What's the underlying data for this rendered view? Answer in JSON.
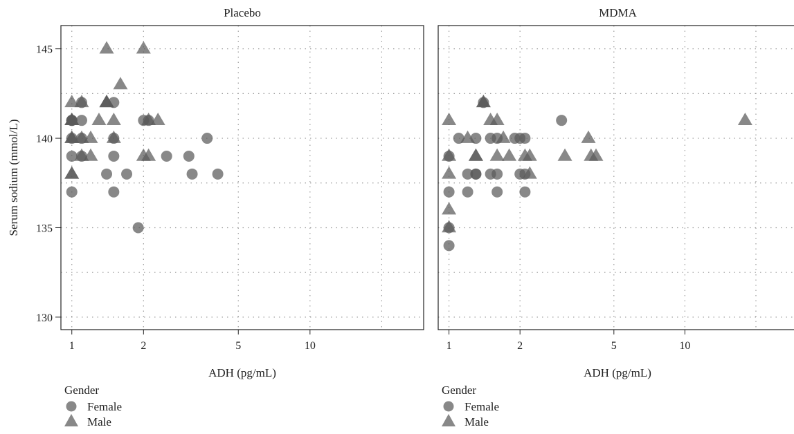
{
  "chart_data": {
    "type": "scatter",
    "ylabel": "Serum sodium (mmol/L)",
    "xlabel": "ADH (pg/mL)",
    "x_scale": "log",
    "xlim": [
      0.9,
      30
    ],
    "ylim": [
      129.3,
      146.3
    ],
    "x_ticks": [
      1,
      2,
      5,
      10
    ],
    "y_ticks": [
      130,
      135,
      140,
      145
    ],
    "grid": true,
    "legend": {
      "title": "Gender",
      "entries": [
        {
          "label": "Female",
          "marker": "circle"
        },
        {
          "label": "Male",
          "marker": "triangle"
        }
      ],
      "placement": "bottom-left"
    },
    "marker_color": "#5a5a5a",
    "marker_opacity": 0.72,
    "panels": [
      {
        "title": "Placebo",
        "series": [
          {
            "name": "Female",
            "marker": "circle",
            "points": [
              [
                1,
                141
              ],
              [
                1,
                141
              ],
              [
                1,
                141
              ],
              [
                1,
                140
              ],
              [
                1,
                139
              ],
              [
                1,
                137
              ],
              [
                1.1,
                142
              ],
              [
                1.1,
                141
              ],
              [
                1.1,
                140
              ],
              [
                1.1,
                139
              ],
              [
                1.4,
                138
              ],
              [
                1.5,
                142
              ],
              [
                1.5,
                140
              ],
              [
                1.5,
                139
              ],
              [
                1.5,
                137
              ],
              [
                1.7,
                138
              ],
              [
                1.9,
                135
              ],
              [
                2,
                141
              ],
              [
                2.1,
                141
              ],
              [
                2.5,
                139
              ],
              [
                3.1,
                139
              ],
              [
                3.2,
                138
              ],
              [
                3.7,
                140
              ],
              [
                4.1,
                138
              ]
            ]
          },
          {
            "name": "Male",
            "marker": "triangle",
            "points": [
              [
                1,
                142
              ],
              [
                1,
                141
              ],
              [
                1,
                141
              ],
              [
                1,
                141
              ],
              [
                1,
                140
              ],
              [
                1,
                140
              ],
              [
                1,
                138
              ],
              [
                1,
                138
              ],
              [
                1.1,
                142
              ],
              [
                1.1,
                140
              ],
              [
                1.1,
                139
              ],
              [
                1.2,
                140
              ],
              [
                1.2,
                139
              ],
              [
                1.3,
                141
              ],
              [
                1.4,
                145
              ],
              [
                1.4,
                142
              ],
              [
                1.4,
                142
              ],
              [
                1.4,
                142
              ],
              [
                1.5,
                141
              ],
              [
                1.5,
                140
              ],
              [
                1.6,
                143
              ],
              [
                2,
                145
              ],
              [
                2,
                139
              ],
              [
                2.1,
                139
              ],
              [
                2.1,
                141
              ],
              [
                2.3,
                141
              ]
            ]
          }
        ]
      },
      {
        "title": "MDMA",
        "series": [
          {
            "name": "Female",
            "marker": "circle",
            "points": [
              [
                1,
                139
              ],
              [
                1,
                137
              ],
              [
                1,
                135
              ],
              [
                1,
                134
              ],
              [
                1.1,
                140
              ],
              [
                1.2,
                138
              ],
              [
                1.2,
                137
              ],
              [
                1.3,
                140
              ],
              [
                1.3,
                138
              ],
              [
                1.3,
                138
              ],
              [
                1.4,
                142
              ],
              [
                1.5,
                138
              ],
              [
                1.5,
                140
              ],
              [
                1.6,
                138
              ],
              [
                1.6,
                137
              ],
              [
                1.6,
                140
              ],
              [
                1.9,
                140
              ],
              [
                2,
                140
              ],
              [
                2,
                138
              ],
              [
                2.1,
                140
              ],
              [
                2.1,
                138
              ],
              [
                2.1,
                137
              ],
              [
                3,
                141
              ]
            ]
          },
          {
            "name": "Male",
            "marker": "triangle",
            "points": [
              [
                1,
                141
              ],
              [
                1,
                139
              ],
              [
                1,
                138
              ],
              [
                1,
                136
              ],
              [
                1,
                135
              ],
              [
                1.2,
                140
              ],
              [
                1.3,
                139
              ],
              [
                1.3,
                139
              ],
              [
                1.4,
                142
              ],
              [
                1.4,
                142
              ],
              [
                1.5,
                141
              ],
              [
                1.6,
                141
              ],
              [
                1.6,
                139
              ],
              [
                1.7,
                140
              ],
              [
                1.8,
                139
              ],
              [
                2.1,
                139
              ],
              [
                2.2,
                139
              ],
              [
                2.2,
                138
              ],
              [
                3.1,
                139
              ],
              [
                3.9,
                140
              ],
              [
                4,
                139
              ],
              [
                4.2,
                139
              ],
              [
                18,
                141
              ]
            ]
          }
        ]
      }
    ]
  }
}
